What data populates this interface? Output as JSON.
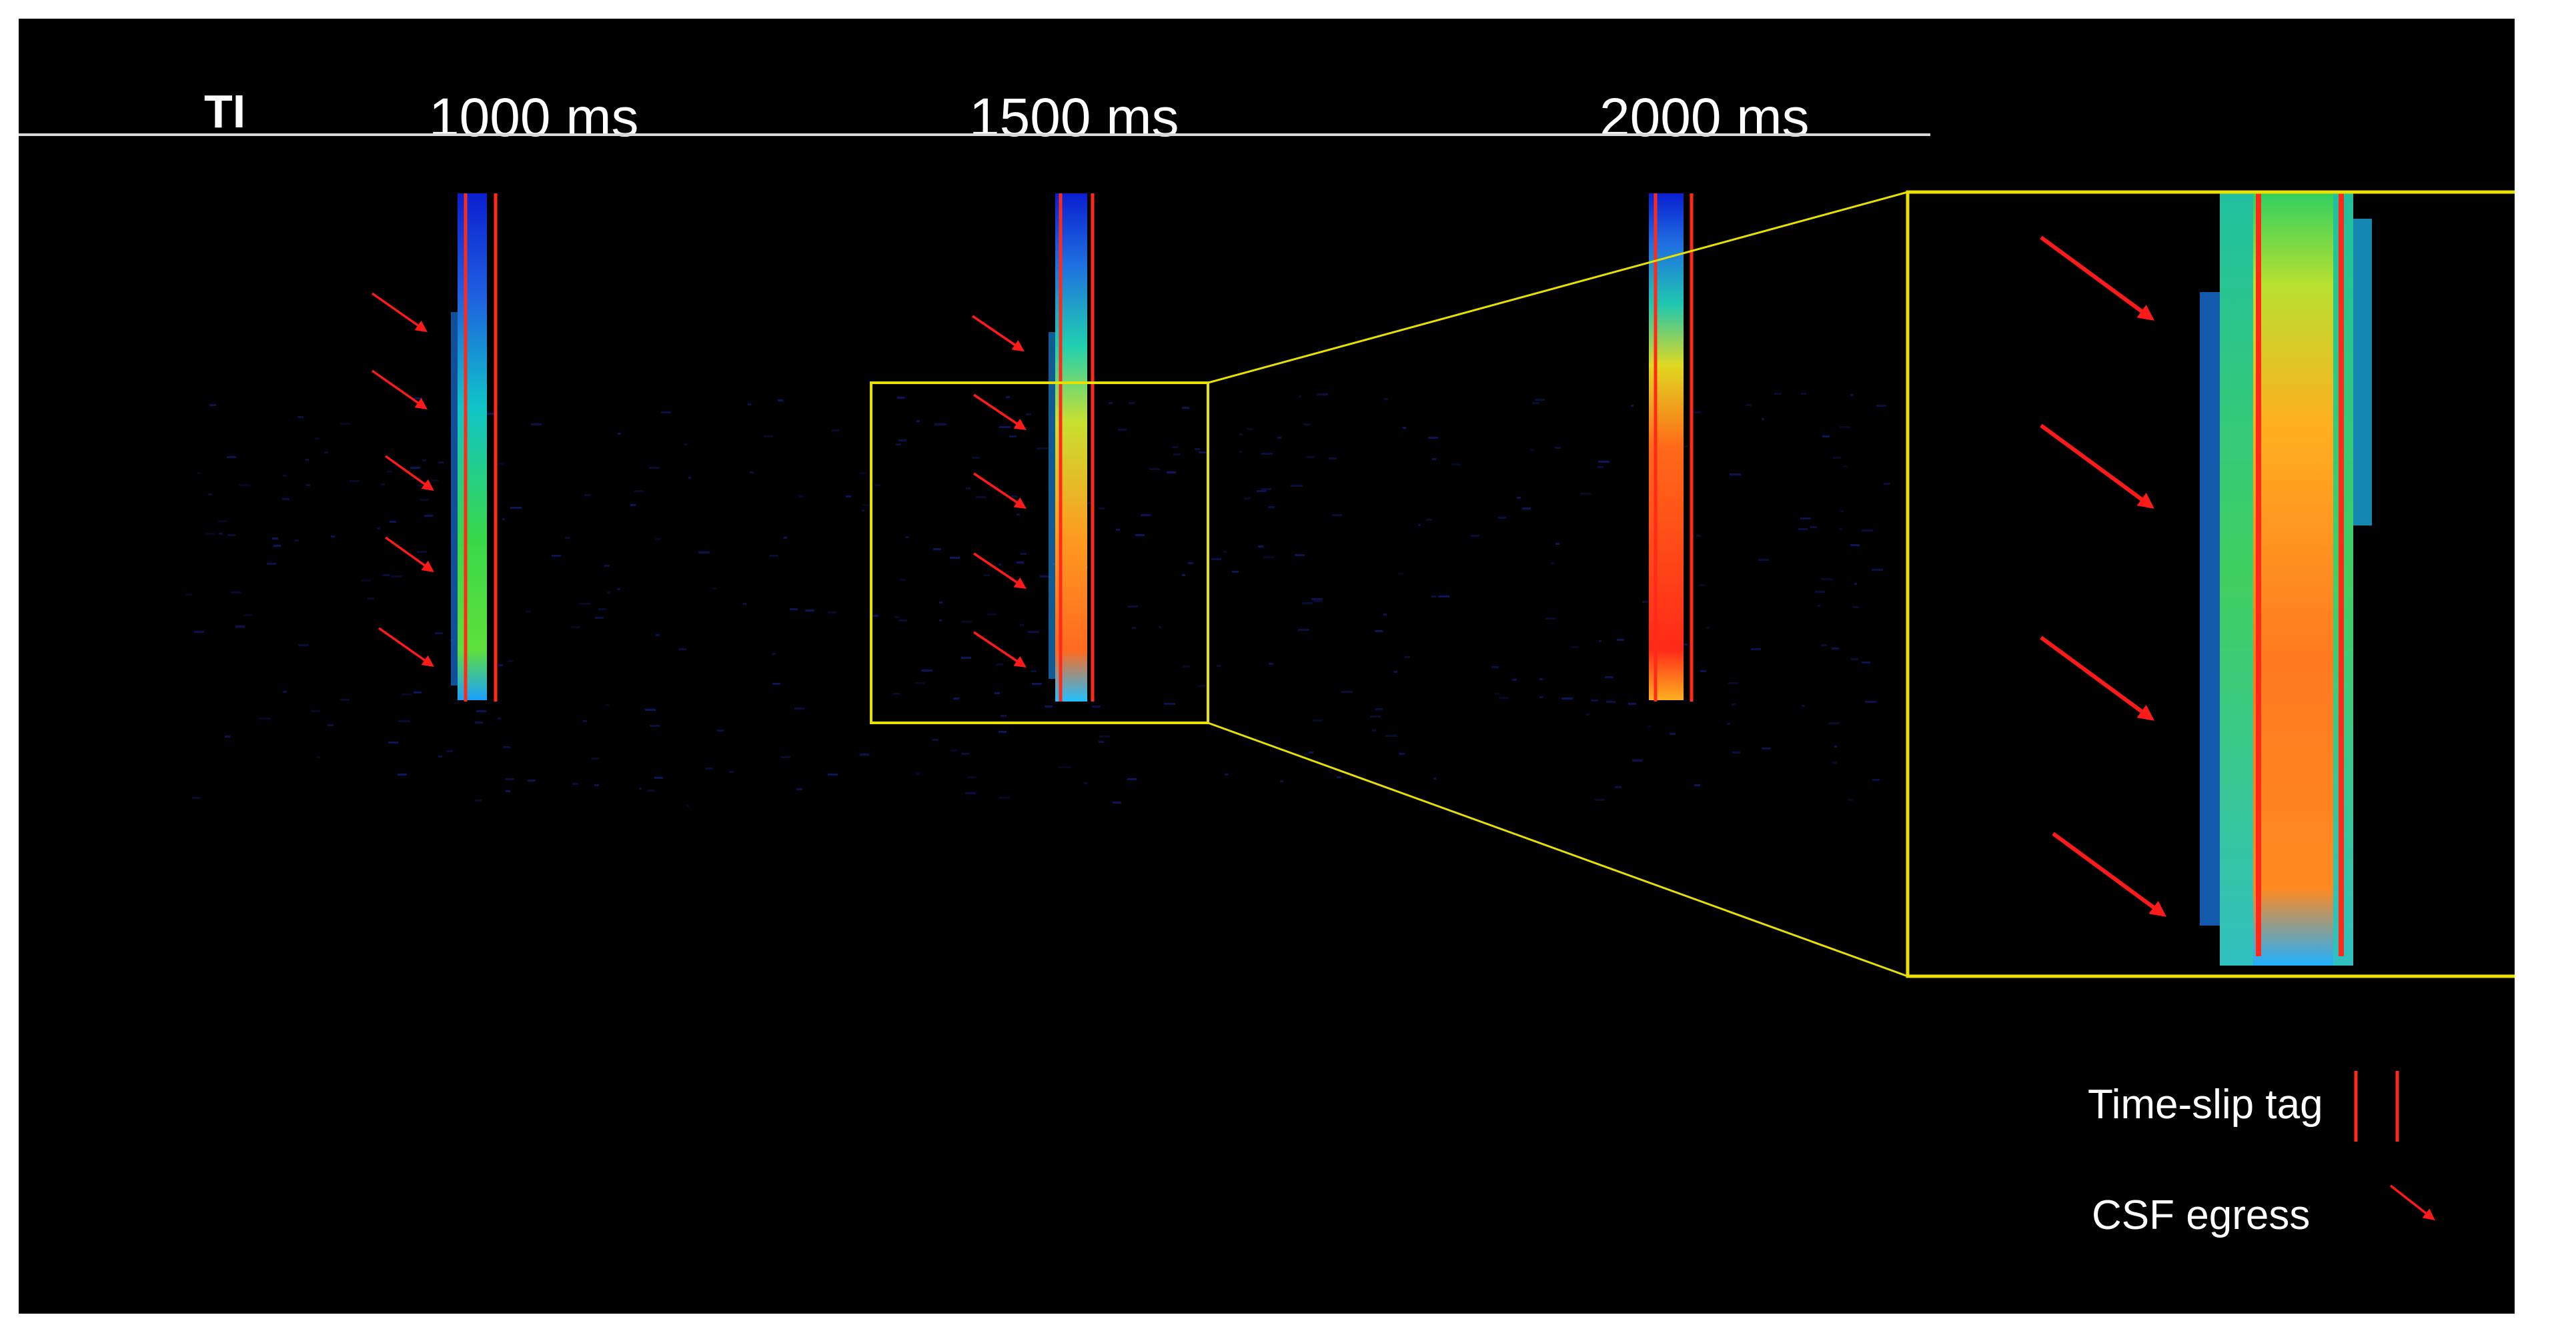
{
  "header": {
    "ti_label": "TI",
    "times": [
      "1000 ms",
      "1500 ms",
      "2000 ms"
    ]
  },
  "legend": {
    "tag_label": "Time-slip tag",
    "arrow_label": "CSF egress"
  },
  "colors": {
    "background": "#000000",
    "tag": "#ff2a1a",
    "arrow": "#ff1a1a",
    "zoom_box": "#e8e000",
    "header_line": "#d8d8d8",
    "text": "#ffffff"
  }
}
